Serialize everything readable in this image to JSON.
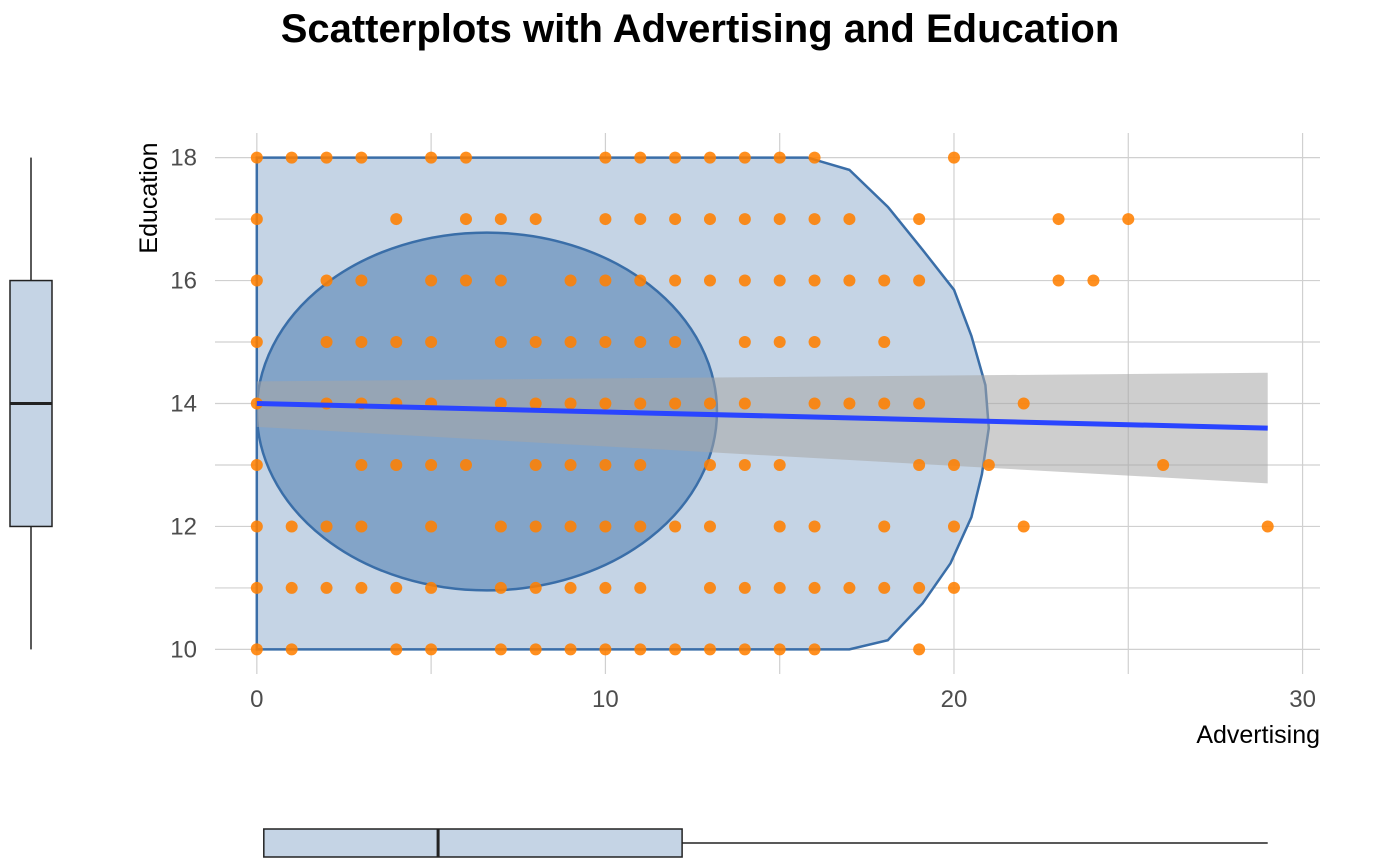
{
  "chart_data": {
    "type": "scatter",
    "title": "Scatterplots with Advertising and Education",
    "xlabel": "Advertising",
    "ylabel": "Education",
    "xlim": [
      -1.2,
      30.5
    ],
    "ylim": [
      9.6,
      18.4
    ],
    "x_ticks": [
      0,
      10,
      20,
      30
    ],
    "y_ticks": [
      10,
      12,
      14,
      16,
      18
    ],
    "grid": true,
    "colors": {
      "points": "#ff7f00",
      "hull_fill": "#c5d4e5",
      "hull_stroke": "#3a6ea8",
      "ellipse_fill": "#7b9ec4",
      "regression_line": "#2a45ff",
      "confidence_band": "#a6a6a6",
      "grid": "#d0d0d0",
      "boxplot_fill": "#c5d4e5",
      "boxplot_stroke": "#222222"
    },
    "points": [
      [
        0,
        18
      ],
      [
        1,
        18
      ],
      [
        2,
        18
      ],
      [
        3,
        18
      ],
      [
        5,
        18
      ],
      [
        6,
        18
      ],
      [
        10,
        18
      ],
      [
        11,
        18
      ],
      [
        12,
        18
      ],
      [
        13,
        18
      ],
      [
        14,
        18
      ],
      [
        15,
        18
      ],
      [
        16,
        18
      ],
      [
        20,
        18
      ],
      [
        0,
        17
      ],
      [
        4,
        17
      ],
      [
        6,
        17
      ],
      [
        7,
        17
      ],
      [
        8,
        17
      ],
      [
        10,
        17
      ],
      [
        11,
        17
      ],
      [
        12,
        17
      ],
      [
        13,
        17
      ],
      [
        14,
        17
      ],
      [
        15,
        17
      ],
      [
        16,
        17
      ],
      [
        17,
        17
      ],
      [
        19,
        17
      ],
      [
        23,
        17
      ],
      [
        25,
        17
      ],
      [
        0,
        16
      ],
      [
        2,
        16
      ],
      [
        3,
        16
      ],
      [
        5,
        16
      ],
      [
        6,
        16
      ],
      [
        7,
        16
      ],
      [
        9,
        16
      ],
      [
        10,
        16
      ],
      [
        11,
        16
      ],
      [
        12,
        16
      ],
      [
        13,
        16
      ],
      [
        14,
        16
      ],
      [
        15,
        16
      ],
      [
        16,
        16
      ],
      [
        17,
        16
      ],
      [
        18,
        16
      ],
      [
        19,
        16
      ],
      [
        23,
        16
      ],
      [
        24,
        16
      ],
      [
        0,
        15
      ],
      [
        2,
        15
      ],
      [
        3,
        15
      ],
      [
        4,
        15
      ],
      [
        5,
        15
      ],
      [
        7,
        15
      ],
      [
        8,
        15
      ],
      [
        9,
        15
      ],
      [
        10,
        15
      ],
      [
        11,
        15
      ],
      [
        12,
        15
      ],
      [
        14,
        15
      ],
      [
        15,
        15
      ],
      [
        16,
        15
      ],
      [
        18,
        15
      ],
      [
        0,
        14
      ],
      [
        2,
        14
      ],
      [
        3,
        14
      ],
      [
        4,
        14
      ],
      [
        5,
        14
      ],
      [
        7,
        14
      ],
      [
        8,
        14
      ],
      [
        9,
        14
      ],
      [
        10,
        14
      ],
      [
        11,
        14
      ],
      [
        12,
        14
      ],
      [
        13,
        14
      ],
      [
        14,
        14
      ],
      [
        16,
        14
      ],
      [
        17,
        14
      ],
      [
        18,
        14
      ],
      [
        19,
        14
      ],
      [
        22,
        14
      ],
      [
        0,
        13
      ],
      [
        3,
        13
      ],
      [
        4,
        13
      ],
      [
        5,
        13
      ],
      [
        6,
        13
      ],
      [
        8,
        13
      ],
      [
        9,
        13
      ],
      [
        10,
        13
      ],
      [
        11,
        13
      ],
      [
        13,
        13
      ],
      [
        14,
        13
      ],
      [
        15,
        13
      ],
      [
        19,
        13
      ],
      [
        20,
        13
      ],
      [
        21,
        13
      ],
      [
        26,
        13
      ],
      [
        0,
        12
      ],
      [
        1,
        12
      ],
      [
        2,
        12
      ],
      [
        3,
        12
      ],
      [
        5,
        12
      ],
      [
        7,
        12
      ],
      [
        8,
        12
      ],
      [
        9,
        12
      ],
      [
        10,
        12
      ],
      [
        11,
        12
      ],
      [
        12,
        12
      ],
      [
        13,
        12
      ],
      [
        15,
        12
      ],
      [
        16,
        12
      ],
      [
        18,
        12
      ],
      [
        20,
        12
      ],
      [
        22,
        12
      ],
      [
        29,
        12
      ],
      [
        0,
        11
      ],
      [
        1,
        11
      ],
      [
        2,
        11
      ],
      [
        3,
        11
      ],
      [
        4,
        11
      ],
      [
        5,
        11
      ],
      [
        7,
        11
      ],
      [
        8,
        11
      ],
      [
        9,
        11
      ],
      [
        10,
        11
      ],
      [
        11,
        11
      ],
      [
        13,
        11
      ],
      [
        14,
        11
      ],
      [
        15,
        11
      ],
      [
        16,
        11
      ],
      [
        17,
        11
      ],
      [
        18,
        11
      ],
      [
        19,
        11
      ],
      [
        20,
        11
      ],
      [
        0,
        10
      ],
      [
        1,
        10
      ],
      [
        4,
        10
      ],
      [
        5,
        10
      ],
      [
        7,
        10
      ],
      [
        8,
        10
      ],
      [
        9,
        10
      ],
      [
        10,
        10
      ],
      [
        11,
        10
      ],
      [
        12,
        10
      ],
      [
        13,
        10
      ],
      [
        14,
        10
      ],
      [
        15,
        10
      ],
      [
        16,
        10
      ],
      [
        19,
        10
      ]
    ],
    "hull": [
      [
        0,
        10
      ],
      [
        0,
        18
      ],
      [
        15.8,
        18
      ],
      [
        17,
        17.8
      ],
      [
        18.1,
        17.2
      ],
      [
        19.1,
        16.5
      ],
      [
        20,
        15.85
      ],
      [
        20.5,
        15.1
      ],
      [
        20.9,
        14.3
      ],
      [
        21,
        13.6
      ],
      [
        20.8,
        12.85
      ],
      [
        20.5,
        12.15
      ],
      [
        19.9,
        11.4
      ],
      [
        19.1,
        10.75
      ],
      [
        18.1,
        10.15
      ],
      [
        17,
        10
      ]
    ],
    "ellipse": {
      "center": [
        6.6,
        13.87
      ],
      "radius_x": 6.6,
      "radius_y": 2.91
    },
    "regression": {
      "x_start": 0,
      "y_start": 14.0,
      "x_end": 29,
      "y_end": 13.6
    },
    "confidence_band": {
      "x": [
        0,
        29
      ],
      "lower": [
        13.62,
        12.7
      ],
      "upper": [
        14.36,
        14.5
      ]
    },
    "boxplot_y": {
      "min": 10,
      "q1": 12,
      "median": 14,
      "q3": 16,
      "max": 18
    },
    "boxplot_x": {
      "min": 0,
      "q1": 0.2,
      "median": 5.2,
      "q3": 12.2,
      "max": 29
    }
  }
}
